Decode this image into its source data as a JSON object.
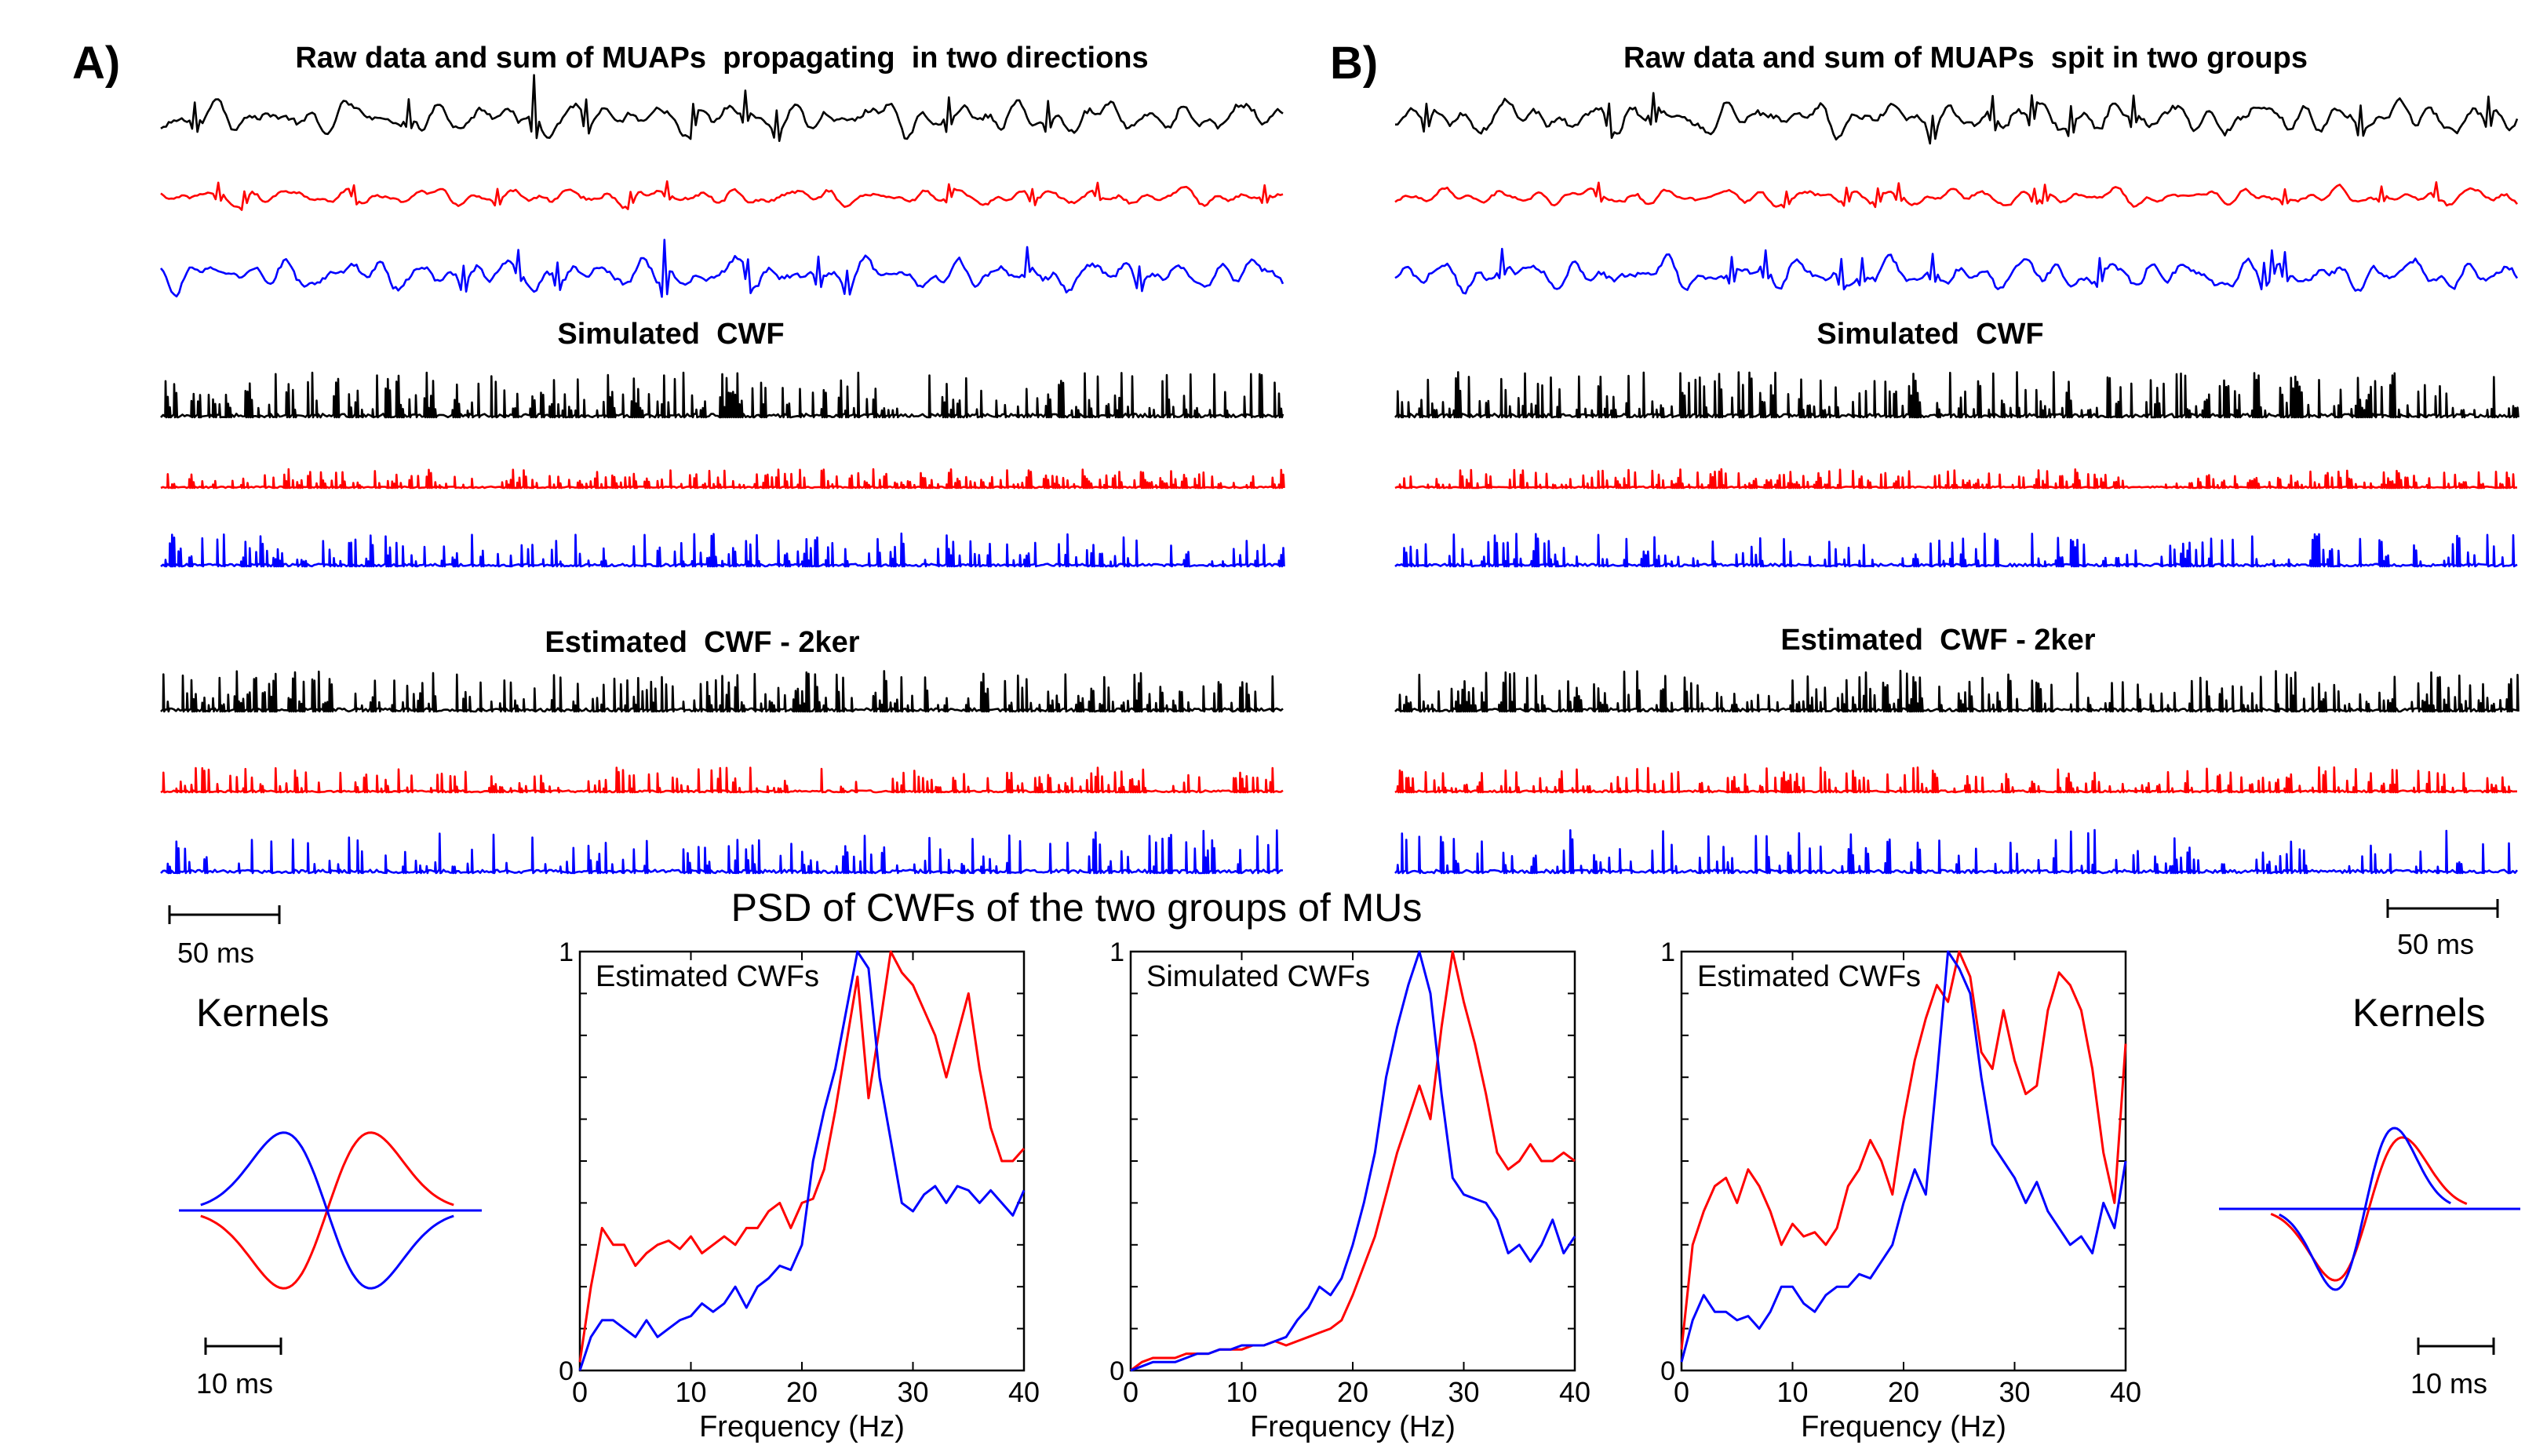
{
  "figure": {
    "panel_a_letter": "A)",
    "panel_b_letter": "B)",
    "psd_title": "PSD of CWFs of the two groups of MUs",
    "kernels_label_left": "Kernels",
    "kernels_label_right": "Kernels"
  },
  "colors": {
    "black": "#000000",
    "red": "#ff0000",
    "blue": "#0000ff"
  },
  "panel_a": {
    "title_raw": "Raw data and sum of MUAPs  propagating  in two directions",
    "title_sim": "Simulated  CWF",
    "title_est": "Estimated  CWF - 2ker",
    "scalebar": "50 ms",
    "kernel_scalebar": "10 ms"
  },
  "panel_b": {
    "title_raw": "Raw data and sum of MUAPs  spit in two groups",
    "title_sim": "Simulated  CWF",
    "title_est": "Estimated  CWF - 2ker",
    "scalebar": "50 ms",
    "kernel_scalebar": "10 ms"
  },
  "chart_data": [
    {
      "type": "line",
      "title": "Estimated CWFs",
      "xlabel": "Frequency (Hz)",
      "ylabel": "",
      "xlim": [
        0,
        40
      ],
      "ylim": [
        0,
        1
      ],
      "xticks": [
        0,
        10,
        20,
        30,
        40
      ],
      "yticks": [
        0,
        1
      ],
      "x": [
        0,
        1,
        2,
        3,
        4,
        5,
        6,
        7,
        8,
        9,
        10,
        11,
        12,
        13,
        14,
        15,
        16,
        17,
        18,
        19,
        20,
        21,
        22,
        23,
        24,
        25,
        26,
        27,
        28,
        29,
        30,
        31,
        32,
        33,
        34,
        35,
        36,
        37,
        38,
        39,
        40
      ],
      "series": [
        {
          "name": "red",
          "color": "#ff0000",
          "values": [
            0.02,
            0.2,
            0.34,
            0.3,
            0.3,
            0.25,
            0.28,
            0.3,
            0.31,
            0.29,
            0.32,
            0.28,
            0.3,
            0.32,
            0.3,
            0.34,
            0.34,
            0.38,
            0.4,
            0.34,
            0.4,
            0.41,
            0.48,
            0.62,
            0.78,
            0.94,
            0.65,
            0.82,
            1.0,
            0.95,
            0.92,
            0.86,
            0.8,
            0.7,
            0.8,
            0.9,
            0.72,
            0.58,
            0.5,
            0.5,
            0.53
          ]
        },
        {
          "name": "blue",
          "color": "#0000ff",
          "values": [
            0.0,
            0.08,
            0.12,
            0.12,
            0.1,
            0.08,
            0.12,
            0.08,
            0.1,
            0.12,
            0.13,
            0.16,
            0.14,
            0.16,
            0.2,
            0.15,
            0.2,
            0.22,
            0.25,
            0.24,
            0.3,
            0.5,
            0.62,
            0.72,
            0.86,
            1.0,
            0.96,
            0.7,
            0.55,
            0.4,
            0.38,
            0.42,
            0.44,
            0.4,
            0.44,
            0.43,
            0.4,
            0.43,
            0.4,
            0.37,
            0.43
          ]
        }
      ]
    },
    {
      "type": "line",
      "title": "Simulated CWFs",
      "xlabel": "Frequency (Hz)",
      "ylabel": "",
      "xlim": [
        0,
        40
      ],
      "ylim": [
        0,
        1
      ],
      "xticks": [
        0,
        10,
        20,
        30,
        40
      ],
      "yticks": [
        0,
        1
      ],
      "x": [
        0,
        1,
        2,
        3,
        4,
        5,
        6,
        7,
        8,
        9,
        10,
        11,
        12,
        13,
        14,
        15,
        16,
        17,
        18,
        19,
        20,
        21,
        22,
        23,
        24,
        25,
        26,
        27,
        28,
        29,
        30,
        31,
        32,
        33,
        34,
        35,
        36,
        37,
        38,
        39,
        40
      ],
      "series": [
        {
          "name": "red",
          "color": "#ff0000",
          "values": [
            0.0,
            0.02,
            0.03,
            0.03,
            0.03,
            0.04,
            0.04,
            0.04,
            0.05,
            0.05,
            0.05,
            0.06,
            0.06,
            0.07,
            0.06,
            0.07,
            0.08,
            0.09,
            0.1,
            0.12,
            0.18,
            0.25,
            0.32,
            0.42,
            0.52,
            0.6,
            0.68,
            0.6,
            0.82,
            1.0,
            0.88,
            0.78,
            0.66,
            0.52,
            0.48,
            0.5,
            0.54,
            0.5,
            0.5,
            0.52,
            0.5
          ]
        },
        {
          "name": "blue",
          "color": "#0000ff",
          "values": [
            0.0,
            0.01,
            0.02,
            0.02,
            0.02,
            0.03,
            0.04,
            0.04,
            0.05,
            0.05,
            0.06,
            0.06,
            0.06,
            0.07,
            0.08,
            0.12,
            0.15,
            0.2,
            0.18,
            0.22,
            0.3,
            0.4,
            0.52,
            0.7,
            0.82,
            0.92,
            1.0,
            0.9,
            0.66,
            0.46,
            0.42,
            0.41,
            0.4,
            0.36,
            0.28,
            0.3,
            0.26,
            0.3,
            0.36,
            0.28,
            0.32
          ]
        }
      ]
    },
    {
      "type": "line",
      "title": "Estimated CWFs",
      "xlabel": "Frequency (Hz)",
      "ylabel": "",
      "xlim": [
        0,
        40
      ],
      "ylim": [
        0,
        1
      ],
      "xticks": [
        0,
        10,
        20,
        30,
        40
      ],
      "yticks": [
        0,
        1
      ],
      "x": [
        0,
        1,
        2,
        3,
        4,
        5,
        6,
        7,
        8,
        9,
        10,
        11,
        12,
        13,
        14,
        15,
        16,
        17,
        18,
        19,
        20,
        21,
        22,
        23,
        24,
        25,
        26,
        27,
        28,
        29,
        30,
        31,
        32,
        33,
        34,
        35,
        36,
        37,
        38,
        39,
        40
      ],
      "series": [
        {
          "name": "red",
          "color": "#ff0000",
          "values": [
            0.05,
            0.3,
            0.38,
            0.44,
            0.46,
            0.4,
            0.48,
            0.44,
            0.38,
            0.3,
            0.35,
            0.32,
            0.33,
            0.3,
            0.34,
            0.44,
            0.48,
            0.55,
            0.5,
            0.42,
            0.6,
            0.74,
            0.84,
            0.92,
            0.88,
            1.0,
            0.94,
            0.76,
            0.72,
            0.86,
            0.74,
            0.66,
            0.68,
            0.86,
            0.95,
            0.92,
            0.86,
            0.72,
            0.52,
            0.4,
            0.78
          ]
        },
        {
          "name": "blue",
          "color": "#0000ff",
          "values": [
            0.02,
            0.12,
            0.18,
            0.14,
            0.14,
            0.12,
            0.13,
            0.1,
            0.14,
            0.2,
            0.2,
            0.16,
            0.14,
            0.18,
            0.2,
            0.2,
            0.23,
            0.22,
            0.26,
            0.3,
            0.4,
            0.48,
            0.42,
            0.7,
            1.0,
            0.96,
            0.9,
            0.7,
            0.54,
            0.5,
            0.46,
            0.4,
            0.45,
            0.38,
            0.34,
            0.3,
            0.32,
            0.28,
            0.4,
            0.34,
            0.5
          ]
        }
      ]
    }
  ]
}
